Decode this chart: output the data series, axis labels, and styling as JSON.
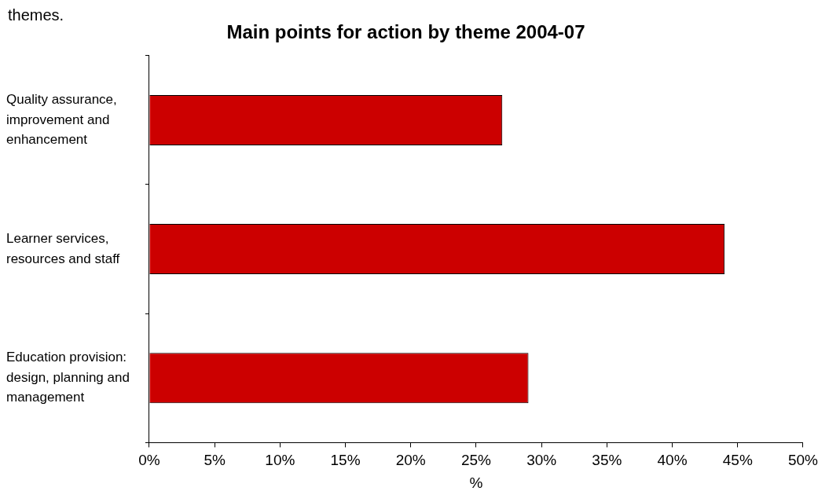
{
  "chart_data": {
    "type": "bar",
    "orientation": "horizontal",
    "title": "Main points for action by theme 2004-07",
    "xlabel": "%",
    "annotations": [
      "themes."
    ],
    "categories": [
      "Quality assurance, improvement and enhancement",
      "Learner services, resources and staff",
      "Education provision: design, planning and management"
    ],
    "values": [
      27,
      44,
      29
    ],
    "color": "#cc0000",
    "xlim": [
      0,
      50
    ],
    "xticks": [
      {
        "value": 0,
        "label": "0%"
      },
      {
        "value": 5,
        "label": "5%"
      },
      {
        "value": 10,
        "label": "10%"
      },
      {
        "value": 15,
        "label": "15%"
      },
      {
        "value": 20,
        "label": "20%"
      },
      {
        "value": 25,
        "label": "25%"
      },
      {
        "value": 30,
        "label": "30%"
      },
      {
        "value": 35,
        "label": "35%"
      },
      {
        "value": 40,
        "label": "40%"
      },
      {
        "value": 45,
        "label": "45%"
      },
      {
        "value": 50,
        "label": "50%"
      }
    ],
    "grid": false,
    "legend": false
  }
}
